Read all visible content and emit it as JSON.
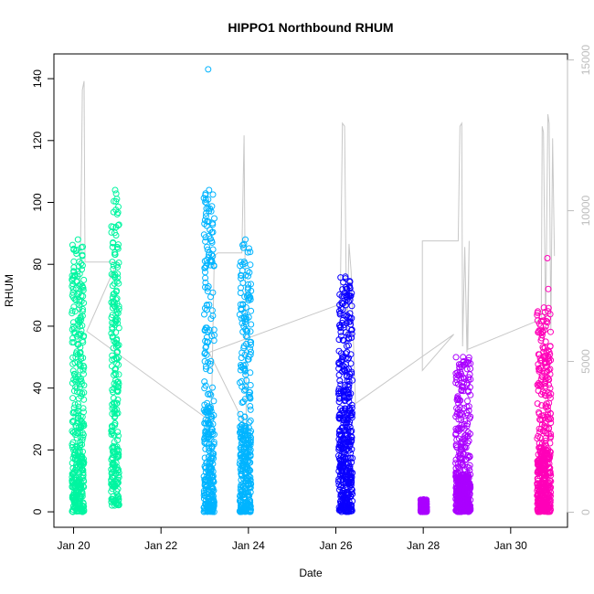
{
  "chart_data": {
    "type": "scatter",
    "title": "HIPPO1 Northbound RHUM",
    "xlabel": "Date",
    "ylabel": "RHUM",
    "x_ticks": [
      "Jan 20",
      "Jan 22",
      "Jan 24",
      "Jan 26",
      "Jan 28",
      "Jan 30"
    ],
    "x_tick_days": [
      20,
      22,
      24,
      26,
      28,
      30
    ],
    "xlim": [
      19.55,
      31.3
    ],
    "y_ticks": [
      "0",
      "20",
      "40",
      "60",
      "80",
      "100",
      "120",
      "140"
    ],
    "y_tick_values": [
      0,
      20,
      40,
      60,
      80,
      100,
      120,
      140
    ],
    "ylim": [
      -5,
      148
    ],
    "y2_ticks": [
      "0",
      "5000",
      "10000",
      "15000"
    ],
    "y2_tick_values": [
      0,
      5000,
      10000,
      15000
    ],
    "y2lim": [
      -500,
      15200
    ],
    "series": [
      {
        "color": "#00f5a0",
        "clusters": [
          {
            "x_range": [
              19.96,
              20.24
            ],
            "y_min": 0,
            "y_max": 88,
            "center": 10,
            "spread": 24
          },
          {
            "x_range": [
              20.86,
              21.04
            ],
            "y_min": 2,
            "y_max": 104,
            "center": 55,
            "spread": 24
          }
        ]
      },
      {
        "color": "#00b4ff",
        "clusters": [
          {
            "x_range": [
              22.98,
              23.22
            ],
            "y_min": 0,
            "y_max": 104,
            "center": 12,
            "spread": 22
          },
          {
            "x_range": [
              23.8,
              24.06
            ],
            "y_min": 0,
            "y_max": 88,
            "center": 8,
            "spread": 20
          }
        ],
        "outliers": [
          {
            "x": 23.08,
            "y": 143
          },
          {
            "x": 23.12,
            "y": 98
          }
        ]
      },
      {
        "color": "#0a00ff",
        "clusters": [
          {
            "x_range": [
              26.06,
              26.38
            ],
            "y_min": 0,
            "y_max": 76,
            "center": 22,
            "spread": 20
          }
        ]
      },
      {
        "color": "#aa00ff",
        "clusters": [
          {
            "x_range": [
              27.94,
              28.08
            ],
            "y_min": 0,
            "y_max": 4,
            "center": 1,
            "spread": 1
          },
          {
            "x_range": [
              28.74,
              29.08
            ],
            "y_min": 0,
            "y_max": 50,
            "center": 2,
            "spread": 10
          }
        ]
      },
      {
        "color": "#ff00b8",
        "clusters": [
          {
            "x_range": [
              30.6,
              30.92
            ],
            "y_min": 0,
            "y_max": 66,
            "center": 4,
            "spread": 16
          }
        ],
        "outliers": [
          {
            "x": 30.84,
            "y": 82
          },
          {
            "x": 30.86,
            "y": 72
          }
        ]
      }
    ],
    "secondary_line": {
      "color": "#c8c8c8",
      "points": [
        [
          20.08,
          4000
        ],
        [
          20.12,
          6000
        ],
        [
          20.16,
          9000
        ],
        [
          20.18,
          11000
        ],
        [
          20.2,
          14000
        ],
        [
          20.24,
          14300
        ],
        [
          20.26,
          8300
        ],
        [
          21.0,
          8300
        ],
        [
          20.3,
          6000
        ],
        [
          23.15,
          3000
        ],
        [
          23.22,
          8500
        ],
        [
          23.3,
          8600
        ],
        [
          23.85,
          8600
        ],
        [
          23.9,
          12500
        ],
        [
          23.95,
          2800
        ],
        [
          23.1,
          5300
        ],
        [
          26.1,
          6900
        ],
        [
          26.15,
          12900
        ],
        [
          26.2,
          12800
        ],
        [
          26.25,
          5500
        ],
        [
          26.3,
          8900
        ],
        [
          26.35,
          8000
        ],
        [
          26.4,
          5800
        ],
        [
          26.45,
          3600
        ],
        [
          28.7,
          5900
        ],
        [
          27.98,
          4700
        ],
        [
          27.98,
          9000
        ],
        [
          28.8,
          9000
        ],
        [
          28.84,
          12800
        ],
        [
          28.88,
          12900
        ],
        [
          28.9,
          5500
        ],
        [
          28.95,
          8800
        ],
        [
          29.0,
          5300
        ],
        [
          29.05,
          9000
        ],
        [
          29.02,
          5400
        ],
        [
          30.7,
          6400
        ],
        [
          30.72,
          12800
        ],
        [
          30.75,
          12600
        ],
        [
          30.8,
          6000
        ],
        [
          30.85,
          13200
        ],
        [
          30.88,
          12900
        ],
        [
          30.92,
          6000
        ],
        [
          30.96,
          12400
        ],
        [
          31.0,
          8500
        ]
      ]
    }
  }
}
